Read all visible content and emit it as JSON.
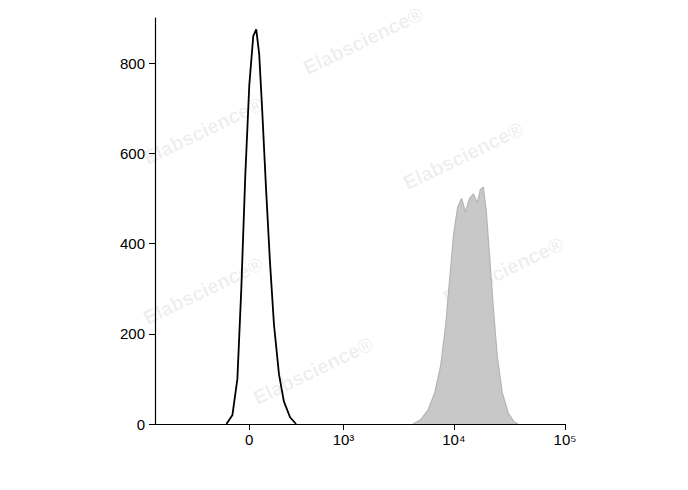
{
  "chart_data": {
    "type": "histogram",
    "log": "x",
    "grid": false,
    "xlim": [
      -1000,
      100000
    ],
    "xticks": [
      0,
      {
        "value": 1000,
        "label": "10³"
      },
      {
        "value": 10000,
        "label": "10⁴"
      },
      {
        "value": 100000,
        "label": "10⁵"
      }
    ],
    "ylim": [
      0,
      900
    ],
    "yticks": [
      0,
      200,
      400,
      600,
      800
    ],
    "annotations": [
      "Elabscience®"
    ],
    "series": [
      {
        "type": "line",
        "color": "#000000",
        "line_style": "solid",
        "x": [
          -142,
          -103,
          -72,
          -48,
          -24,
          0,
          24,
          42,
          60,
          78,
          103,
          128,
          155,
          190,
          226,
          275,
          327
        ],
        "values": [
          0,
          20,
          100,
          300,
          550,
          750,
          860,
          875,
          820,
          700,
          520,
          360,
          220,
          110,
          50,
          15,
          0
        ]
      },
      {
        "type": "area",
        "color": "#c8c8c8",
        "line_style": "solid",
        "x": [
          4290,
          5060,
          5840,
          6750,
          7630,
          8460,
          9180,
          9960,
          10820,
          11750,
          12750,
          13850,
          15020,
          16310,
          17340,
          18440,
          19630,
          20870,
          22650,
          24590,
          27250,
          30810,
          34860,
          37850
        ],
        "values": [
          0,
          10,
          30,
          70,
          130,
          220,
          320,
          420,
          480,
          500,
          470,
          500,
          510,
          490,
          520,
          525,
          470,
          380,
          260,
          150,
          70,
          25,
          5,
          0
        ]
      }
    ]
  }
}
